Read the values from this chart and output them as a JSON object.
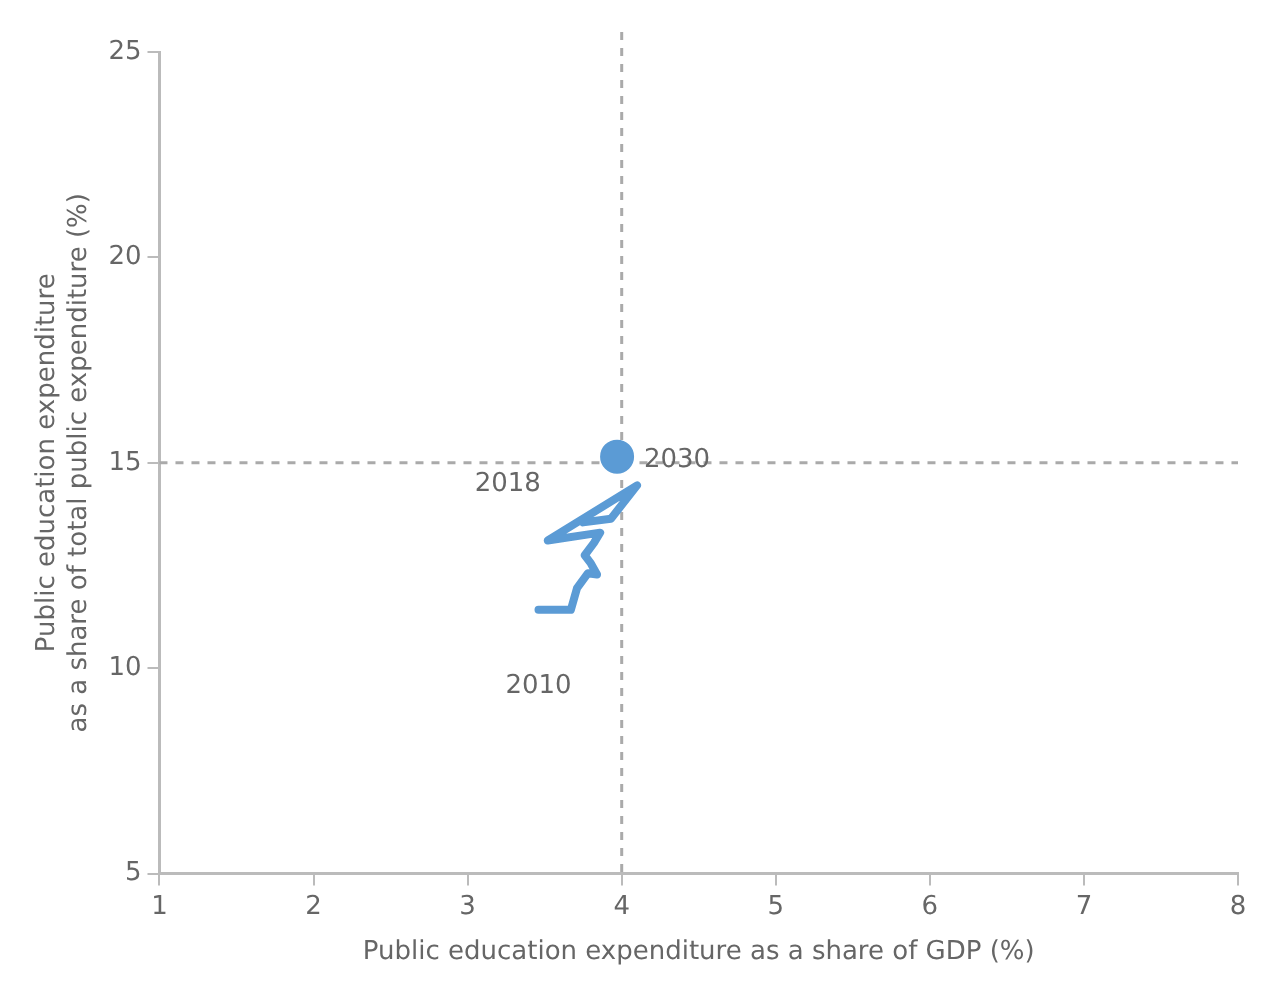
{
  "chart_data": {
    "type": "line",
    "xlabel": "Public education expenditure as a share of GDP (%)",
    "ylabel": "Public education expenditure\nas a share of total public expenditure (%)",
    "xlim": [
      1,
      8
    ],
    "xticks": [
      1,
      2,
      3,
      4,
      5,
      6,
      7,
      8
    ],
    "ylim": [
      5,
      25
    ],
    "yticks": [
      5,
      10,
      15,
      20,
      25
    ],
    "grid": false,
    "series": [
      {
        "color": "#5b9bd5",
        "marker": "none",
        "x": [
          3.46,
          3.67,
          3.71,
          3.78,
          3.84,
          3.8,
          3.76,
          3.82,
          3.86,
          3.52,
          4.1,
          3.93,
          3.75
        ],
        "values": [
          11.42,
          11.42,
          11.95,
          12.31,
          12.28,
          12.55,
          12.75,
          13.05,
          13.3,
          13.11,
          14.45,
          13.64,
          13.55
        ]
      },
      {
        "type": "scatter",
        "color": "#5b9bd5",
        "marker": "circle",
        "x": [
          3.97
        ],
        "values": [
          15.15
        ]
      }
    ],
    "ref_lines": [
      {
        "axis": "x",
        "value": 4,
        "color": "#aaaaaa",
        "line_style": "dashed"
      },
      {
        "axis": "y",
        "value": 15,
        "color": "#aaaaaa",
        "line_style": "dashed"
      }
    ],
    "annotations": [
      {
        "text": "2010",
        "x": 3.46,
        "y": 11.42
      },
      {
        "text": "2018",
        "x": 3.52,
        "y": 13.11
      },
      {
        "text": "2030",
        "x": 3.97,
        "y": 15.15
      }
    ]
  }
}
